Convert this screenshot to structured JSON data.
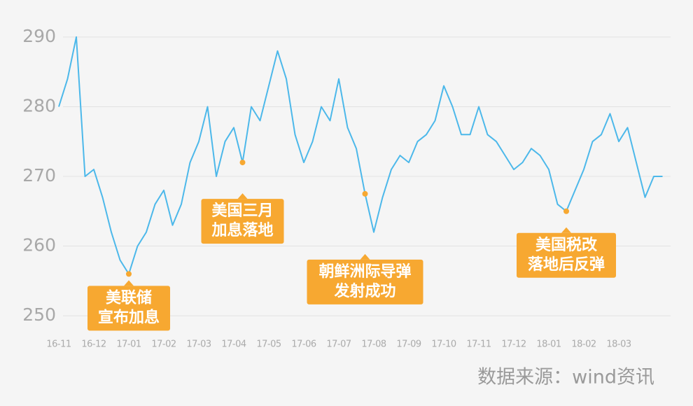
{
  "chart_data": {
    "type": "line",
    "categories": [
      "16-11",
      null,
      null,
      null,
      "16-12",
      null,
      null,
      null,
      "17-01",
      null,
      null,
      null,
      "17-02",
      null,
      null,
      null,
      "17-03",
      null,
      null,
      null,
      "17-04",
      null,
      null,
      null,
      "17-05",
      null,
      null,
      null,
      "17-06",
      null,
      null,
      null,
      "17-07",
      null,
      null,
      null,
      "17-08",
      null,
      null,
      null,
      "17-09",
      null,
      null,
      null,
      "17-10",
      null,
      null,
      null,
      "17-11",
      null,
      null,
      null,
      "17-12",
      null,
      null,
      null,
      "18-01",
      null,
      null,
      null,
      "18-02",
      null,
      null,
      null,
      "18-03",
      null,
      null,
      null,
      null,
      null
    ],
    "series": [
      {
        "color": "#4cb8ea",
        "values": [
          280,
          284,
          290,
          270,
          271,
          267,
          262,
          258,
          256,
          260,
          262,
          266,
          268,
          263,
          266,
          272,
          275,
          280,
          270,
          275,
          277,
          272,
          280,
          278,
          283,
          288,
          284,
          276,
          272,
          275,
          280,
          278,
          284,
          277,
          274,
          267.5,
          262,
          267,
          271,
          273,
          272,
          275,
          276,
          278,
          283,
          280,
          276,
          276,
          280,
          276,
          275,
          273,
          271,
          272,
          274,
          273,
          271,
          266,
          265,
          268,
          271,
          275,
          276,
          279,
          275,
          277,
          272,
          267,
          270,
          270
        ]
      }
    ],
    "ylim": [
      248,
      291.5
    ],
    "yticks": [
      250,
      260,
      270,
      280,
      290
    ],
    "grid": true,
    "annotations": [
      {
        "at": 8,
        "lines": [
          "美联储",
          "宣布加息"
        ],
        "color": "#f7a831"
      },
      {
        "at": 21,
        "lines": [
          "美国三月",
          "加息落地"
        ],
        "color": "#f7a831"
      },
      {
        "at": 35,
        "lines": [
          "朝鲜洲际导弹",
          "发射成功"
        ],
        "color": "#f7a831"
      },
      {
        "at": 58,
        "lines": [
          "美国税改",
          "落地后反弹"
        ],
        "color": "#f7a831"
      }
    ],
    "source": "数据来源：wind资讯"
  }
}
